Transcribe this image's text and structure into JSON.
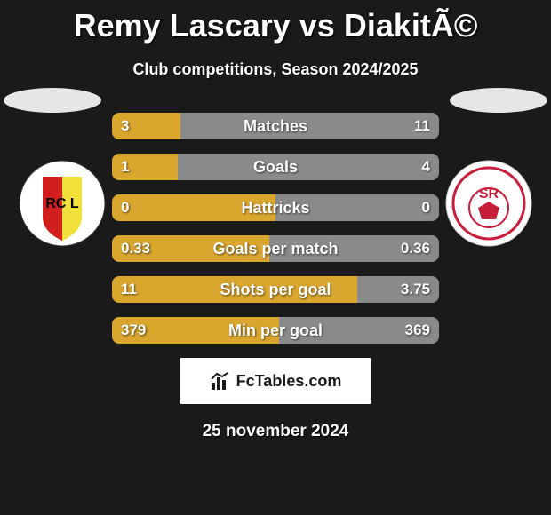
{
  "title": "Remy Lascary vs DiakitÃ©",
  "subtitle": "Club competitions, Season 2024/2025",
  "date": "25 november 2024",
  "branding": "FcTables.com",
  "colors": {
    "left_team": "#d9a62e",
    "right_team": "#8a8a8a",
    "oval_left": "#e6e6e6",
    "oval_right": "#e6e6e6",
    "branding_bg": "#ffffff",
    "branding_text": "#1a1a1a"
  },
  "crests": {
    "left": {
      "bg": "#f2e03a",
      "accent": "#d21e1e",
      "text": "RC L"
    },
    "right": {
      "bg": "#ffffff",
      "accent": "#c81e3a",
      "text": "SR"
    }
  },
  "stats": [
    {
      "label": "Matches",
      "left_val": "3",
      "right_val": "11",
      "left_pct": 21,
      "right_pct": 79
    },
    {
      "label": "Goals",
      "left_val": "1",
      "right_val": "4",
      "left_pct": 20,
      "right_pct": 80
    },
    {
      "label": "Hattricks",
      "left_val": "0",
      "right_val": "0",
      "left_pct": 50,
      "right_pct": 50
    },
    {
      "label": "Goals per match",
      "left_val": "0.33",
      "right_val": "0.36",
      "left_pct": 48,
      "right_pct": 52
    },
    {
      "label": "Shots per goal",
      "left_val": "11",
      "right_val": "3.75",
      "left_pct": 75,
      "right_pct": 25
    },
    {
      "label": "Min per goal",
      "left_val": "379",
      "right_val": "369",
      "left_pct": 51,
      "right_pct": 49
    }
  ]
}
